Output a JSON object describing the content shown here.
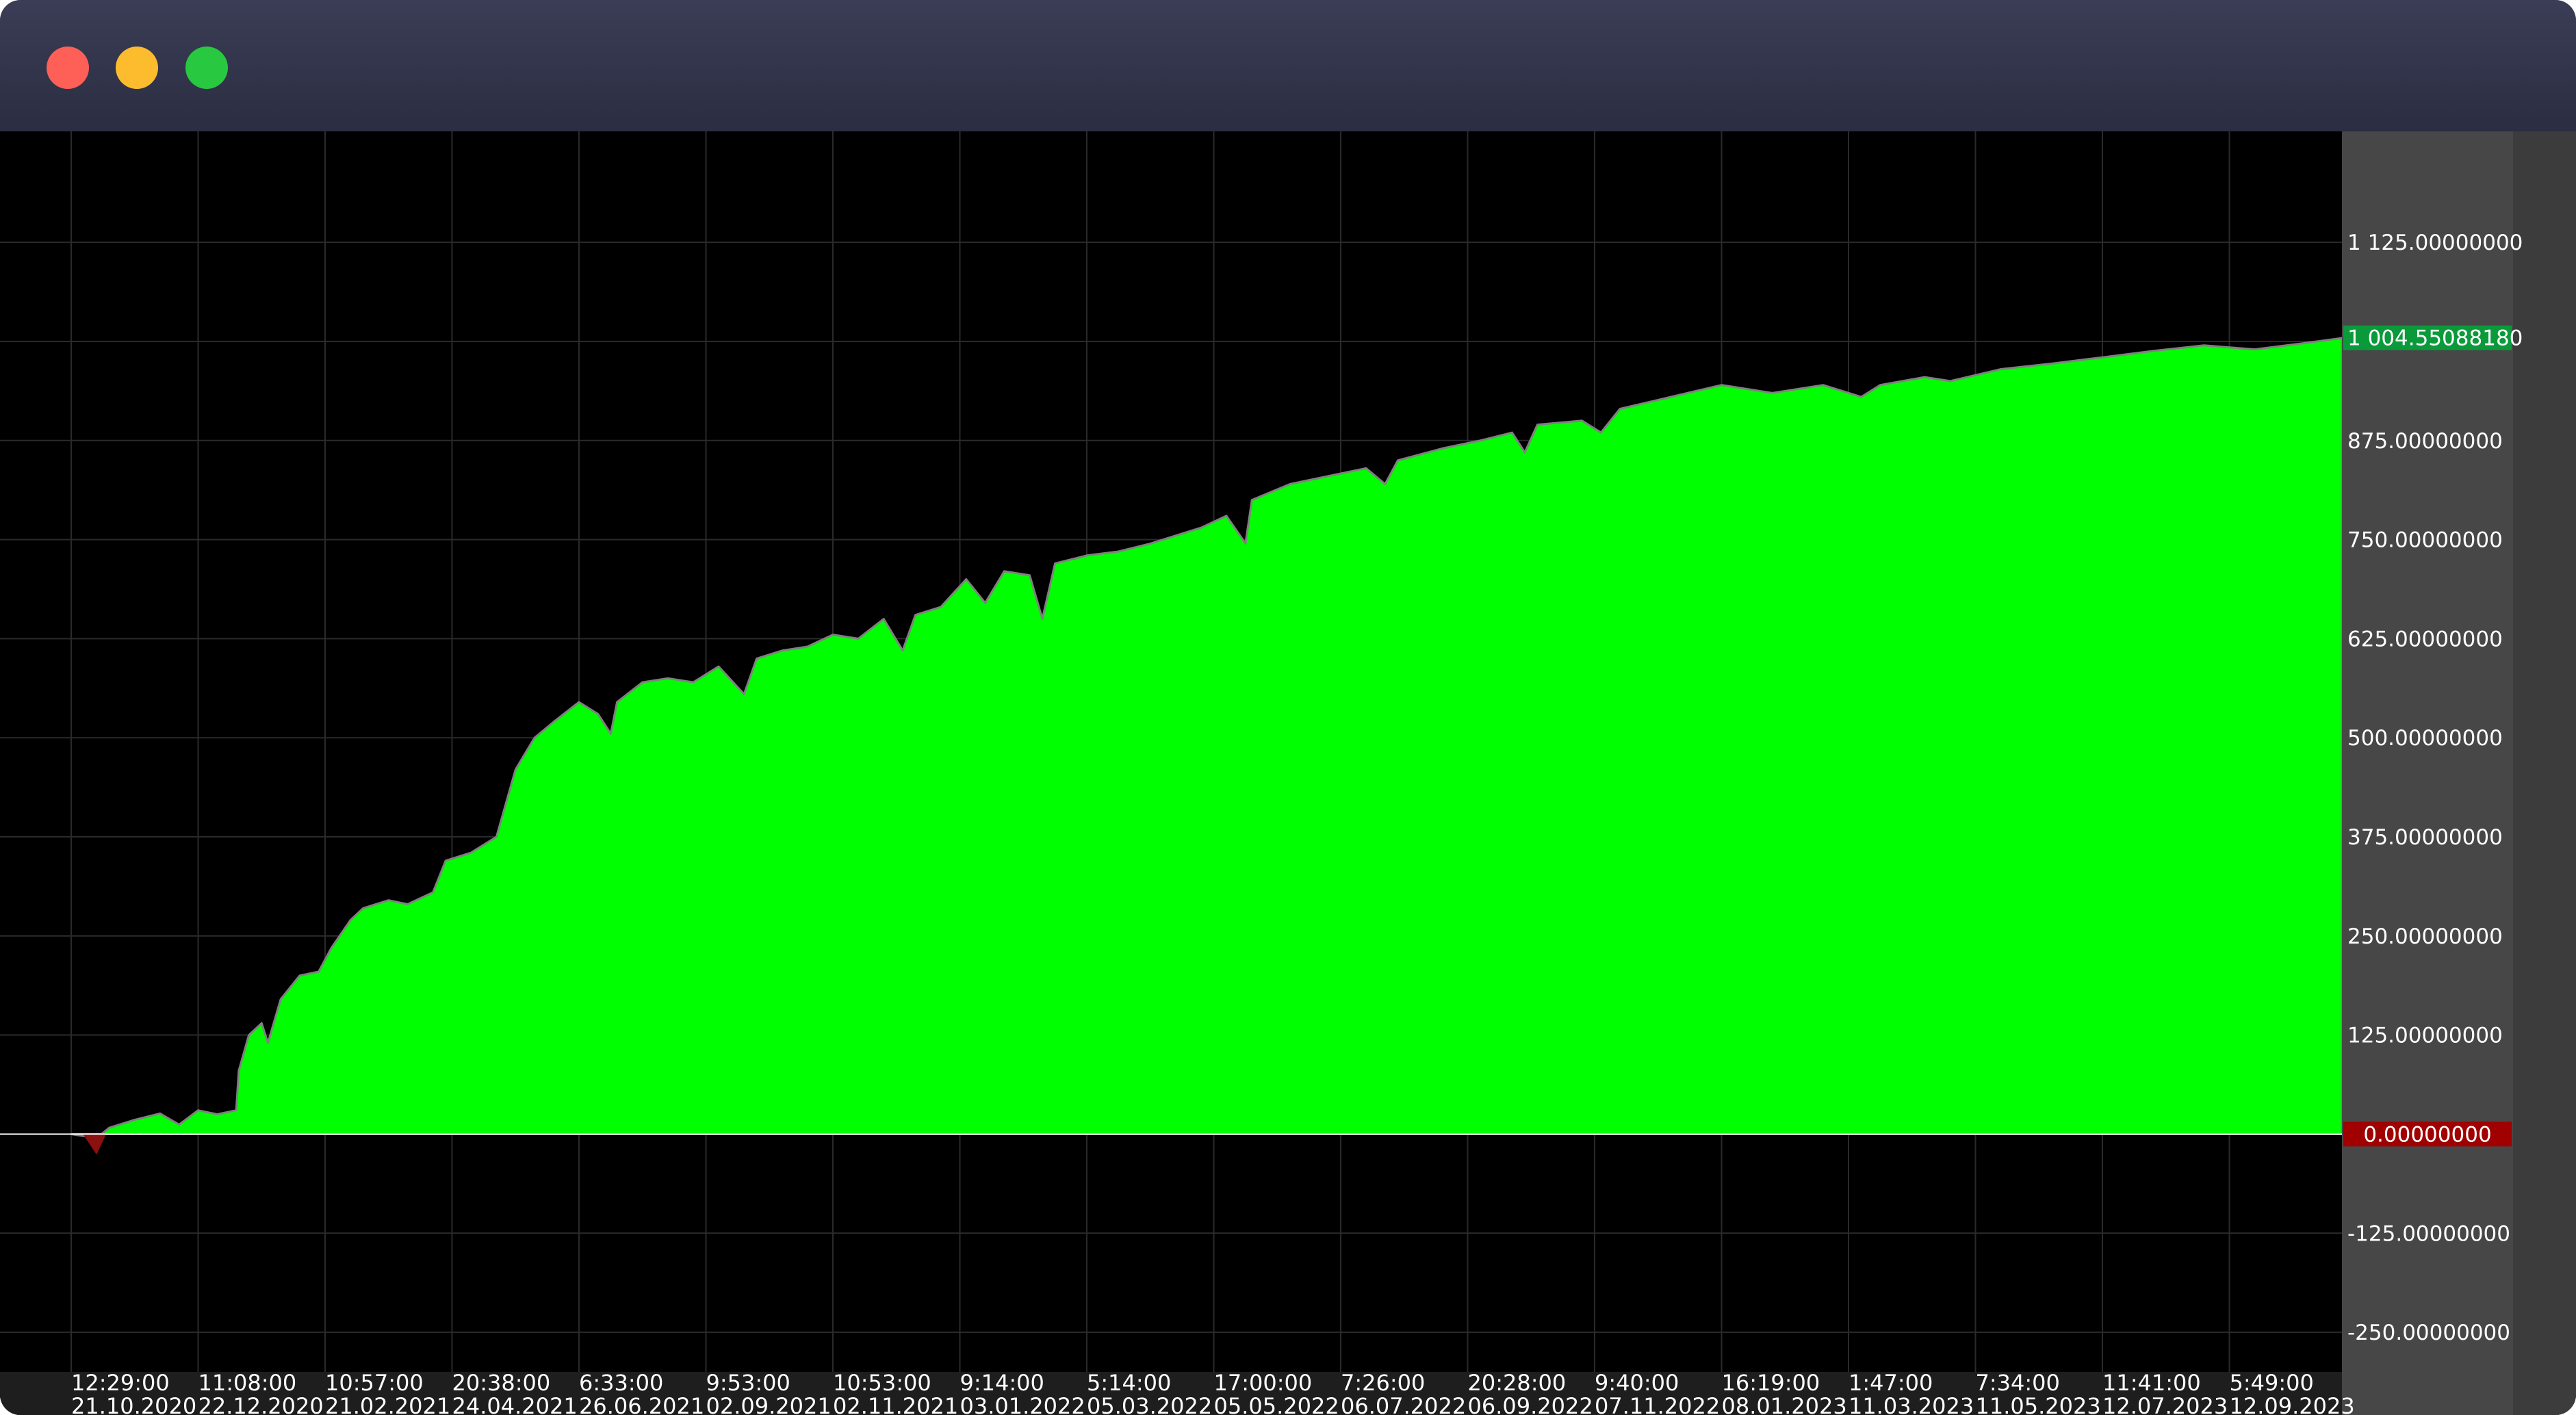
{
  "window": {
    "controls": [
      "close",
      "minimize",
      "maximize"
    ],
    "control_colors": [
      "#fe5f57",
      "#fdbc2e",
      "#28c840"
    ]
  },
  "colors": {
    "background": "#000000",
    "area_fill": "#00ff00",
    "grid": "#2a2a2a",
    "axis_panel": "#474747",
    "last_value_badge": "#0a9a3a",
    "zero_badge": "#a00000",
    "axis_text": "#ffffff",
    "pullback_marks": "#808080"
  },
  "chart_data": {
    "type": "area",
    "ylim": [
      -300,
      1265
    ],
    "grid": true,
    "y_ticks": [
      {
        "value": 1125,
        "label": "1 125.00000000"
      },
      {
        "value": 875,
        "label": "875.00000000"
      },
      {
        "value": 750,
        "label": "750.00000000"
      },
      {
        "value": 625,
        "label": "625.00000000"
      },
      {
        "value": 500,
        "label": "500.00000000"
      },
      {
        "value": 375,
        "label": "375.00000000"
      },
      {
        "value": 250,
        "label": "250.00000000"
      },
      {
        "value": 125,
        "label": "125.00000000"
      },
      {
        "value": -125,
        "label": "-125.00000000"
      },
      {
        "value": -250,
        "label": "-250.00000000"
      }
    ],
    "last_value": {
      "value": 1004.5508818,
      "label": "1 004.55088180"
    },
    "zero_line": {
      "value": 0,
      "label": "0.00000000"
    },
    "x_ticks": [
      {
        "time": "12:29:00",
        "date": "21.10.2020"
      },
      {
        "time": "11:08:00",
        "date": "22.12.2020"
      },
      {
        "time": "10:57:00",
        "date": "21.02.2021"
      },
      {
        "time": "20:38:00",
        "date": "24.04.2021"
      },
      {
        "time": "6:33:00",
        "date": "26.06.2021"
      },
      {
        "time": "9:53:00",
        "date": "02.09.2021"
      },
      {
        "time": "10:53:00",
        "date": "02.11.2021"
      },
      {
        "time": "9:14:00",
        "date": "03.01.2022"
      },
      {
        "time": "5:14:00",
        "date": "05.03.2022"
      },
      {
        "time": "17:00:00",
        "date": "05.05.2022"
      },
      {
        "time": "7:26:00",
        "date": "06.07.2022"
      },
      {
        "time": "20:28:00",
        "date": "06.09.2022"
      },
      {
        "time": "9:40:00",
        "date": "07.11.2022"
      },
      {
        "time": "16:19:00",
        "date": "08.01.2023"
      },
      {
        "time": "1:47:00",
        "date": "11.03.2023"
      },
      {
        "time": "7:34:00",
        "date": "11.05.2023"
      },
      {
        "time": "11:41:00",
        "date": "12.07.2023"
      },
      {
        "time": "5:49:00",
        "date": "12.09.2023"
      }
    ],
    "series": [
      {
        "points": [
          {
            "x": 0.0,
            "y": 0
          },
          {
            "x": 0.2,
            "y": -5
          },
          {
            "x": 0.3,
            "y": 8
          },
          {
            "x": 0.5,
            "y": 18
          },
          {
            "x": 0.7,
            "y": 26
          },
          {
            "x": 0.85,
            "y": 12
          },
          {
            "x": 1.0,
            "y": 30
          },
          {
            "x": 1.15,
            "y": 25
          },
          {
            "x": 1.3,
            "y": 30
          },
          {
            "x": 1.32,
            "y": 80
          },
          {
            "x": 1.4,
            "y": 125
          },
          {
            "x": 1.5,
            "y": 140
          },
          {
            "x": 1.55,
            "y": 115
          },
          {
            "x": 1.65,
            "y": 170
          },
          {
            "x": 1.8,
            "y": 200
          },
          {
            "x": 1.95,
            "y": 205
          },
          {
            "x": 2.05,
            "y": 235
          },
          {
            "x": 2.2,
            "y": 270
          },
          {
            "x": 2.3,
            "y": 285
          },
          {
            "x": 2.5,
            "y": 295
          },
          {
            "x": 2.65,
            "y": 290
          },
          {
            "x": 2.85,
            "y": 305
          },
          {
            "x": 2.95,
            "y": 345
          },
          {
            "x": 3.15,
            "y": 355
          },
          {
            "x": 3.35,
            "y": 375
          },
          {
            "x": 3.5,
            "y": 460
          },
          {
            "x": 3.65,
            "y": 500
          },
          {
            "x": 3.8,
            "y": 520
          },
          {
            "x": 4.0,
            "y": 545
          },
          {
            "x": 4.15,
            "y": 530
          },
          {
            "x": 4.25,
            "y": 505
          },
          {
            "x": 4.3,
            "y": 545
          },
          {
            "x": 4.5,
            "y": 570
          },
          {
            "x": 4.7,
            "y": 575
          },
          {
            "x": 4.9,
            "y": 570
          },
          {
            "x": 5.1,
            "y": 590
          },
          {
            "x": 5.3,
            "y": 555
          },
          {
            "x": 5.4,
            "y": 600
          },
          {
            "x": 5.6,
            "y": 610
          },
          {
            "x": 5.8,
            "y": 615
          },
          {
            "x": 6.0,
            "y": 630
          },
          {
            "x": 6.2,
            "y": 625
          },
          {
            "x": 6.4,
            "y": 650
          },
          {
            "x": 6.55,
            "y": 610
          },
          {
            "x": 6.65,
            "y": 655
          },
          {
            "x": 6.85,
            "y": 665
          },
          {
            "x": 7.05,
            "y": 700
          },
          {
            "x": 7.2,
            "y": 670
          },
          {
            "x": 7.35,
            "y": 710
          },
          {
            "x": 7.55,
            "y": 705
          },
          {
            "x": 7.65,
            "y": 650
          },
          {
            "x": 7.75,
            "y": 720
          },
          {
            "x": 8.0,
            "y": 730
          },
          {
            "x": 8.25,
            "y": 735
          },
          {
            "x": 8.5,
            "y": 745
          },
          {
            "x": 8.7,
            "y": 755
          },
          {
            "x": 8.9,
            "y": 765
          },
          {
            "x": 9.1,
            "y": 780
          },
          {
            "x": 9.25,
            "y": 745
          },
          {
            "x": 9.3,
            "y": 800
          },
          {
            "x": 9.6,
            "y": 820
          },
          {
            "x": 9.9,
            "y": 830
          },
          {
            "x": 10.2,
            "y": 840
          },
          {
            "x": 10.35,
            "y": 820
          },
          {
            "x": 10.45,
            "y": 850
          },
          {
            "x": 10.8,
            "y": 865
          },
          {
            "x": 11.1,
            "y": 875
          },
          {
            "x": 11.35,
            "y": 885
          },
          {
            "x": 11.45,
            "y": 860
          },
          {
            "x": 11.55,
            "y": 895
          },
          {
            "x": 11.9,
            "y": 900
          },
          {
            "x": 12.05,
            "y": 885
          },
          {
            "x": 12.2,
            "y": 915
          },
          {
            "x": 12.6,
            "y": 930
          },
          {
            "x": 13.0,
            "y": 945
          },
          {
            "x": 13.4,
            "y": 935
          },
          {
            "x": 13.8,
            "y": 945
          },
          {
            "x": 14.1,
            "y": 930
          },
          {
            "x": 14.25,
            "y": 945
          },
          {
            "x": 14.6,
            "y": 955
          },
          {
            "x": 14.8,
            "y": 950
          },
          {
            "x": 15.2,
            "y": 965
          },
          {
            "x": 15.6,
            "y": 972
          },
          {
            "x": 16.0,
            "y": 980
          },
          {
            "x": 16.4,
            "y": 988
          },
          {
            "x": 16.8,
            "y": 995
          },
          {
            "x": 17.2,
            "y": 990
          },
          {
            "x": 17.6,
            "y": 998
          },
          {
            "x": 17.9,
            "y": 1004.55
          }
        ]
      }
    ]
  }
}
